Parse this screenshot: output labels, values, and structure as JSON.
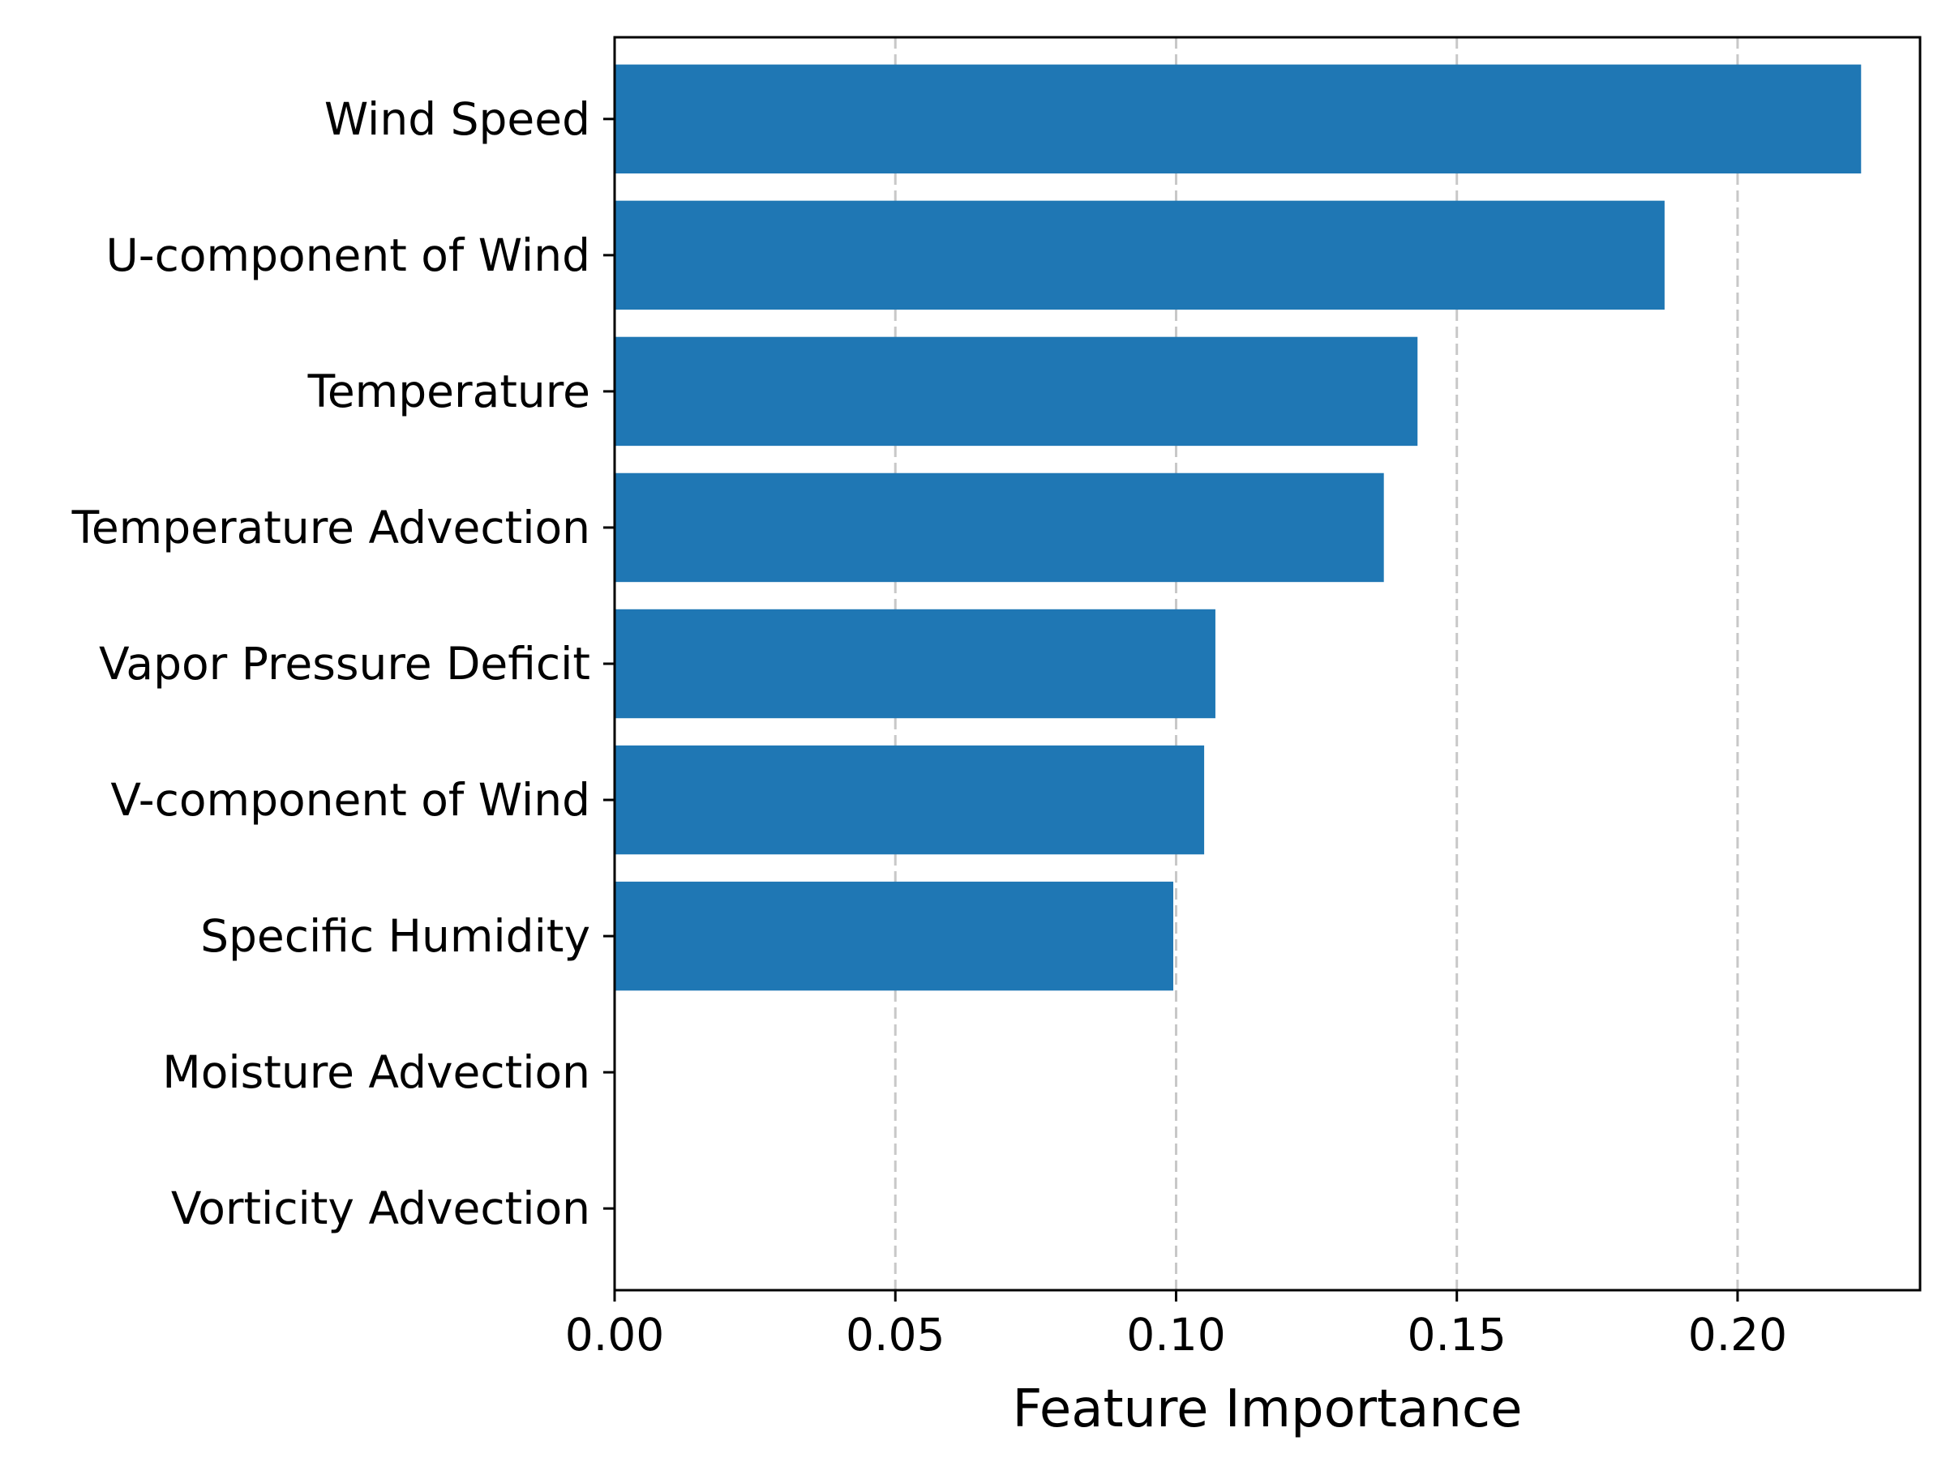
{
  "chart_data": {
    "type": "bar",
    "orientation": "horizontal",
    "categories": [
      "Wind Speed",
      "U-component of Wind",
      "Temperature",
      "Temperature Advection",
      "Vapor Pressure Deficit",
      "V-component of Wind",
      "Specific Humidity",
      "Moisture Advection",
      "Vorticity Advection"
    ],
    "values": [
      0.222,
      0.187,
      0.143,
      0.137,
      0.107,
      0.105,
      0.0995,
      0,
      0
    ],
    "xlabel": "Feature Importance",
    "ylabel": "",
    "title": "",
    "xlim": [
      0,
      0.2325
    ],
    "xticks": [
      0.0,
      0.05,
      0.1,
      0.15,
      0.2
    ],
    "xtick_labels": [
      "0.00",
      "0.05",
      "0.10",
      "0.15",
      "0.20"
    ],
    "grid": "vertical dashed",
    "legend": "none",
    "bar_color": "#1f77b4",
    "grid_color": "#c8c8c8"
  }
}
